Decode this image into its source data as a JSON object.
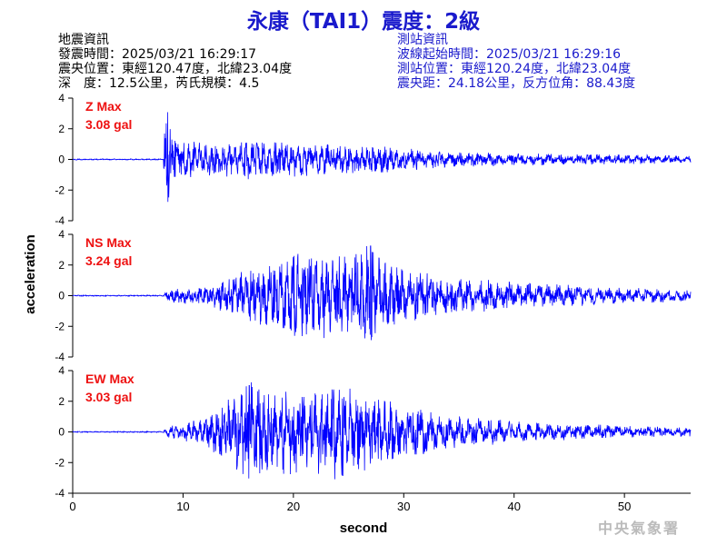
{
  "title": "永康（TAI1）震度：2級",
  "earthquake_info": {
    "heading": "地震資訊",
    "origin_time": "發震時間：2025/03/21 16:29:17",
    "epicenter": "震央位置：東經120.47度，北緯23.04度",
    "depth_magnitude": "深　度：12.5公里，芮氏規模：4.5"
  },
  "station_info": {
    "heading": "測站資訊",
    "wave_start": "波線起始時間：2025/03/21 16:29:16",
    "station_location": "測站位置：東經120.24度，北緯23.04度",
    "distance_azimuth": "震央距：24.18公里，反方位角：88.43度"
  },
  "logo_text": "中央氣象署",
  "colors": {
    "trace": "#0000ff",
    "max_label": "#ee1111",
    "title": "#1a1acc",
    "station_text": "#1a1acc"
  },
  "chart_data": {
    "type": "line",
    "xlabel": "second",
    "ylabel": "acceleration",
    "xlim": [
      0,
      56
    ],
    "x_ticks": [
      0,
      10,
      20,
      30,
      40,
      50
    ],
    "ylim": [
      -4,
      4
    ],
    "y_ticks": [
      -4,
      -2,
      0,
      2,
      4
    ],
    "grid": false,
    "series": [
      {
        "name": "Z",
        "max_label": "Z Max",
        "max_value": "3.08 gal",
        "envelope": {
          "t": [
            0,
            8.2,
            8.4,
            8.6,
            9,
            10,
            12,
            14,
            16,
            18,
            20,
            22,
            25,
            28,
            30,
            35,
            40,
            45,
            50,
            56
          ],
          "amp": [
            0.03,
            0.03,
            2.3,
            3.08,
            1.6,
            1.1,
            0.9,
            1.0,
            1.1,
            1.0,
            1.0,
            0.9,
            0.8,
            0.75,
            0.6,
            0.45,
            0.35,
            0.3,
            0.28,
            0.2
          ]
        }
      },
      {
        "name": "NS",
        "max_label": "NS Max",
        "max_value": "3.24 gal",
        "envelope": {
          "t": [
            0,
            8.2,
            8.6,
            10,
            12,
            14,
            16,
            18,
            20,
            22,
            24,
            26,
            27,
            28,
            30,
            35,
            40,
            45,
            50,
            56
          ],
          "amp": [
            0.03,
            0.03,
            0.35,
            0.45,
            0.45,
            1.1,
            1.5,
            1.8,
            2.6,
            2.3,
            2.6,
            2.5,
            3.24,
            2.0,
            1.5,
            1.0,
            0.8,
            0.6,
            0.45,
            0.3
          ]
        }
      },
      {
        "name": "EW",
        "max_label": "EW Max",
        "max_value": "3.03 gal",
        "envelope": {
          "t": [
            0,
            8.2,
            8.6,
            10,
            12,
            14,
            16,
            18,
            20,
            22,
            24,
            26,
            28,
            30,
            35,
            40,
            45,
            50,
            56
          ],
          "amp": [
            0.03,
            0.03,
            0.35,
            0.5,
            0.8,
            1.7,
            3.03,
            2.0,
            2.6,
            2.3,
            2.8,
            2.3,
            1.8,
            1.5,
            0.9,
            0.6,
            0.45,
            0.35,
            0.25
          ]
        }
      }
    ]
  }
}
